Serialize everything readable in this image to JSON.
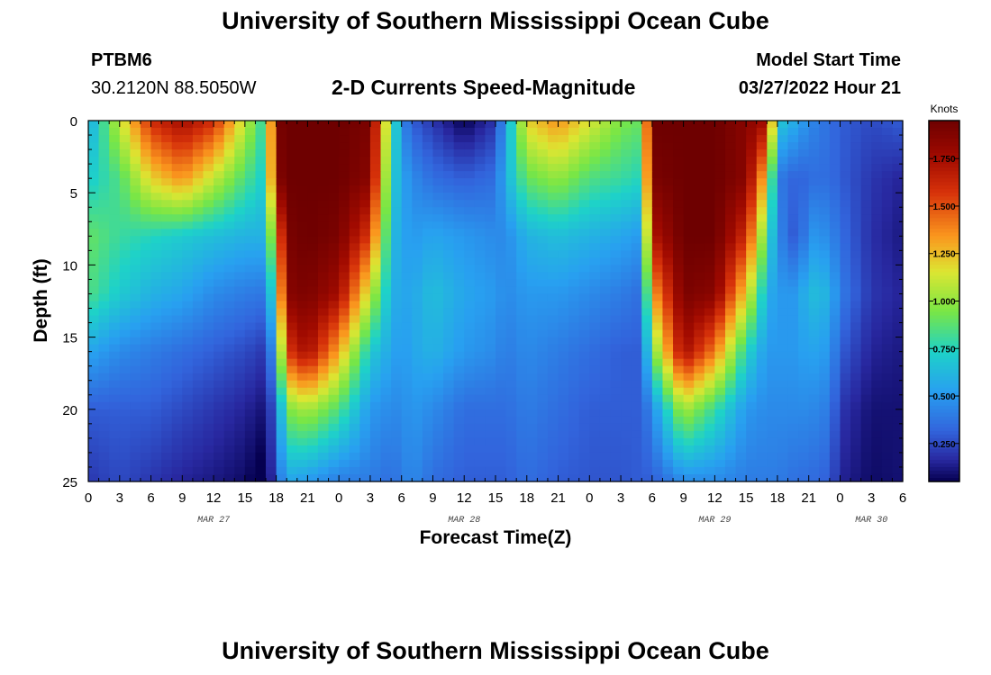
{
  "page": {
    "title": "University of Southern Mississippi Ocean Cube",
    "footer_title": "University of Southern Mississippi Ocean Cube",
    "station_id": "PTBM6",
    "coordinates": "30.2120N  88.5050W",
    "chart_title": "2-D Currents Speed-Magnitude",
    "model_start_label": "Model Start Time",
    "model_start_value": "03/27/2022 Hour 21"
  },
  "chart_data": {
    "type": "heatmap",
    "title": "2-D Currents Speed-Magnitude",
    "xlabel": "Forecast Time(Z)",
    "ylabel": "Depth (ft)",
    "x_ticks": [
      "0",
      "3",
      "6",
      "9",
      "12",
      "15",
      "18",
      "21",
      "0",
      "3",
      "6",
      "9",
      "12",
      "15",
      "18",
      "21",
      "0",
      "3",
      "6",
      "9",
      "12",
      "15",
      "18",
      "21",
      "0",
      "3",
      "6"
    ],
    "date_labels": [
      {
        "label": "MAR 27",
        "at_tick": 4
      },
      {
        "label": "MAR 28",
        "at_tick": 12
      },
      {
        "label": "MAR 29",
        "at_tick": 20
      },
      {
        "label": "MAR 30",
        "at_tick": 25
      }
    ],
    "y_ticks": [
      0,
      5,
      10,
      15,
      20,
      25
    ],
    "ylim": [
      0,
      25
    ],
    "x_range_hours": [
      0,
      78
    ],
    "colorbar": {
      "label": "Knots",
      "min": 0.05,
      "max": 1.95,
      "ticks": [
        "1.750",
        "1.500",
        "1.250",
        "1.000",
        "0.750",
        "0.500",
        "0.250"
      ],
      "tick_values": [
        1.75,
        1.5,
        1.25,
        1.0,
        0.75,
        0.5,
        0.25
      ]
    },
    "time_profile_hours": [
      0,
      3,
      6,
      9,
      12,
      15,
      17,
      18,
      19,
      21,
      24,
      27,
      29,
      30,
      31,
      33,
      36,
      39,
      40,
      42,
      45,
      48,
      51,
      53,
      54,
      57,
      60,
      63,
      65,
      66,
      68,
      69,
      71,
      72,
      75,
      78
    ],
    "profiles": [
      [
        0.55,
        0.7,
        0.9,
        0.85,
        0.55,
        0.3,
        0.2
      ],
      [
        1.1,
        0.85,
        0.8,
        0.7,
        0.45,
        0.3,
        0.25
      ],
      [
        1.6,
        1.2,
        0.75,
        0.6,
        0.4,
        0.3,
        0.2
      ],
      [
        1.75,
        1.35,
        0.7,
        0.55,
        0.35,
        0.25,
        0.15
      ],
      [
        1.6,
        1.1,
        0.65,
        0.45,
        0.3,
        0.2,
        0.12
      ],
      [
        1.1,
        0.85,
        0.6,
        0.4,
        0.25,
        0.15,
        0.08
      ],
      [
        0.75,
        0.7,
        0.6,
        0.38,
        0.2,
        0.1,
        0.0
      ],
      [
        1.9,
        1.85,
        1.3,
        0.95,
        0.6,
        0.35,
        0.3
      ],
      [
        1.95,
        1.95,
        1.9,
        1.85,
        1.55,
        0.95,
        0.55
      ],
      [
        1.95,
        1.95,
        1.95,
        1.9,
        1.75,
        1.05,
        0.5
      ],
      [
        1.95,
        1.95,
        1.9,
        1.75,
        1.3,
        0.85,
        0.4
      ],
      [
        1.9,
        1.85,
        1.55,
        1.1,
        0.7,
        0.5,
        0.4
      ],
      [
        0.9,
        0.75,
        0.65,
        0.6,
        0.55,
        0.45,
        0.35
      ],
      [
        0.45,
        0.55,
        0.55,
        0.55,
        0.5,
        0.45,
        0.4
      ],
      [
        0.3,
        0.45,
        0.5,
        0.55,
        0.55,
        0.5,
        0.45
      ],
      [
        0.2,
        0.35,
        0.55,
        0.65,
        0.6,
        0.45,
        0.35
      ],
      [
        0.05,
        0.3,
        0.5,
        0.55,
        0.5,
        0.35,
        0.3
      ],
      [
        0.2,
        0.35,
        0.45,
        0.5,
        0.45,
        0.35,
        0.3
      ],
      [
        0.55,
        0.6,
        0.45,
        0.45,
        0.4,
        0.35,
        0.3
      ],
      [
        1.2,
        0.9,
        0.6,
        0.5,
        0.45,
        0.4,
        0.35
      ],
      [
        1.35,
        1.0,
        0.65,
        0.5,
        0.4,
        0.35,
        0.3
      ],
      [
        1.15,
        0.85,
        0.6,
        0.45,
        0.35,
        0.3,
        0.28
      ],
      [
        0.95,
        0.8,
        0.55,
        0.4,
        0.3,
        0.3,
        0.28
      ],
      [
        0.9,
        0.75,
        0.5,
        0.35,
        0.3,
        0.3,
        0.3
      ],
      [
        1.95,
        1.9,
        1.7,
        1.3,
        0.9,
        0.45,
        0.3
      ],
      [
        1.95,
        1.95,
        1.95,
        1.9,
        1.75,
        1.05,
        0.45
      ],
      [
        1.95,
        1.95,
        1.95,
        1.85,
        1.4,
        0.8,
        0.45
      ],
      [
        1.85,
        1.85,
        1.6,
        1.2,
        0.75,
        0.5,
        0.4
      ],
      [
        1.75,
        1.2,
        0.85,
        0.6,
        0.5,
        0.45,
        0.4
      ],
      [
        0.7,
        0.4,
        0.45,
        0.5,
        0.5,
        0.45,
        0.4
      ],
      [
        0.55,
        0.3,
        0.25,
        0.5,
        0.5,
        0.45,
        0.35
      ],
      [
        0.45,
        0.35,
        0.5,
        0.65,
        0.55,
        0.45,
        0.35
      ],
      [
        0.35,
        0.35,
        0.45,
        0.6,
        0.5,
        0.4,
        0.3
      ],
      [
        0.3,
        0.3,
        0.35,
        0.4,
        0.3,
        0.2,
        0.15
      ],
      [
        0.25,
        0.2,
        0.18,
        0.2,
        0.15,
        0.1,
        0.08
      ],
      [
        0.3,
        0.15,
        0.12,
        0.15,
        0.12,
        0.1,
        0.1
      ]
    ],
    "profile_depths_ft": [
      0,
      4,
      8,
      12,
      16,
      20,
      25
    ]
  }
}
